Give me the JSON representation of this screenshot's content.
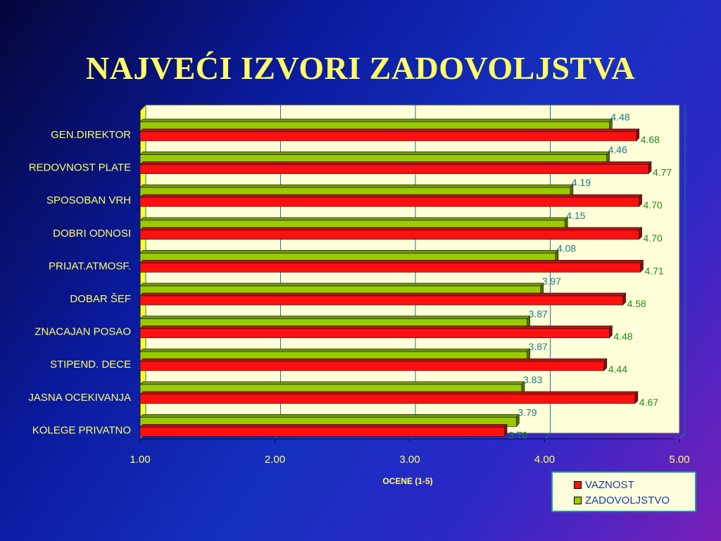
{
  "title": "NAJVEĆI IZVORI ZADOVOLJSTVA",
  "colors": {
    "series_a": "#ff1010",
    "series_b": "#99cc00",
    "plot_bg": "#ffffd8",
    "floor": "#ffff22"
  },
  "chart_data": {
    "type": "bar",
    "orientation": "horizontal",
    "categories": [
      "GEN.DIREKTOR",
      "REDOVNOST PLATE",
      "SPOSOBAN VRH",
      "DOBRI ODNOSI",
      "PRIJAT.ATMOSF.",
      "DOBAR ŠEF",
      "ZNACAJAN POSAO",
      "STIPEND. DECE",
      "JASNA OCEKIVANJA",
      "KOLEGE PRIVATNO"
    ],
    "series": [
      {
        "name": "VAZNOST",
        "values": [
          4.68,
          4.77,
          4.7,
          4.7,
          4.71,
          4.58,
          4.48,
          4.44,
          4.67,
          3.7
        ],
        "labels": [
          "4.68",
          "4.77",
          "4.70",
          "4.70",
          "4.71",
          "4.58",
          "4.48",
          "4.44",
          "4.67",
          "3.70"
        ]
      },
      {
        "name": "ZADOVOLJSTVO",
        "values": [
          4.48,
          4.46,
          4.19,
          4.15,
          4.08,
          3.97,
          3.87,
          3.87,
          3.83,
          3.79
        ],
        "labels": [
          "4.48",
          "4.46",
          "4.19",
          "4.15",
          "4.08",
          "3.97",
          "3.87",
          "3.87",
          "3.83",
          "3.79"
        ]
      }
    ],
    "xlabel": "OCENE (1-5)",
    "xlim": [
      1,
      5
    ],
    "xticks": [
      "1.00",
      "2.00",
      "3.00",
      "4.00",
      "5.00"
    ],
    "grid": true,
    "legend_position": "bottom-right"
  }
}
